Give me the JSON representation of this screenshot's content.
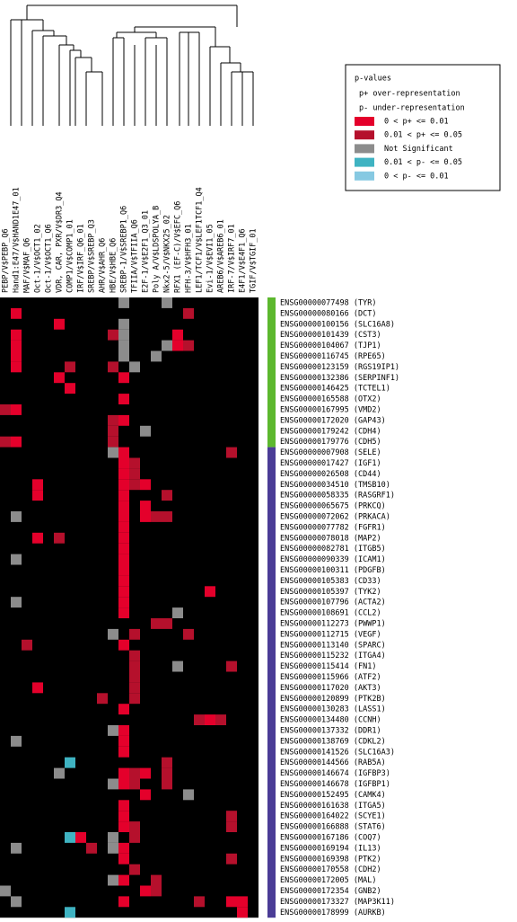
{
  "chart_data": {
    "type": "heatmap",
    "columns": [
      "PEBP/V$PEBP_Q6",
      "Hand1:E47/V$HAND1E47_01",
      "MAF/V$MAF_Q6",
      "Oct-1/V$OCT1_02",
      "Oct-1/V$OCT1_Q6",
      "VDR, CAR, PXR/V$DR3_Q4",
      "COMP1/V$COMP1_01",
      "IRF/V$IRF_Q6_01",
      "SREBP/V$SREBP_Q3",
      "AHR/V$AHR_Q6",
      "HBE/V$HBE_Q6",
      "SREBP-1/V$SREBP1_Q6",
      "TFIIA/V$TFIIA_Q6",
      "E2F-1/V$E2F1_Q3_01",
      "Poly A/V$LDSPOLYA_B",
      "Nkx2-5/V$NKX25_02",
      "RFX1 (EF-C)/V$EFC_Q6",
      "HFH-3/V$HFH3_01",
      "LEF1/TCF1/V$LEF1TCF1_Q4",
      "Evi-1/V$EVI1_05",
      "AREB6/V$AREB6_01",
      "IRF-7/V$IRF7_01",
      "E4F1/V$E4F1_Q6",
      "TGIF/V$TGIF_01"
    ],
    "rows": [
      "ENSG00000077498 (TYR)",
      "ENSG00000080166 (DCT)",
      "ENSG00000100156 (SLC16A8)",
      "ENSG00000101439 (CST3)",
      "ENSG00000104067 (TJP1)",
      "ENSG00000116745 (RPE65)",
      "ENSG00000123159 (RGS19IP1)",
      "ENSG00000132386 (SERPINF1)",
      "ENSG00000146425 (TCTEL1)",
      "ENSG00000165588 (OTX2)",
      "ENSG00000167995 (VMD2)",
      "ENSG00000172020 (GAP43)",
      "ENSG00000179242 (CDH4)",
      "ENSG00000179776 (CDH5)",
      "ENSG00000007908 (SELE)",
      "ENSG00000017427 (IGF1)",
      "ENSG00000026508 (CD44)",
      "ENSG00000034510 (TMSB10)",
      "ENSG00000058335 (RASGRF1)",
      "ENSG00000065675 (PRKCQ)",
      "ENSG00000072062 (PRKACA)",
      "ENSG00000077782 (FGFR1)",
      "ENSG00000078018 (MAP2)",
      "ENSG00000082781 (ITGB5)",
      "ENSG00000090339 (ICAM1)",
      "ENSG00000100311 (PDGFB)",
      "ENSG00000105383 (CD33)",
      "ENSG00000105397 (TYK2)",
      "ENSG00000107796 (ACTA2)",
      "ENSG00000108691 (CCL2)",
      "ENSG00000112273 (PWWP1)",
      "ENSG00000112715 (VEGF)",
      "ENSG00000113140 (SPARC)",
      "ENSG00000115232 (ITGA4)",
      "ENSG00000115414 (FN1)",
      "ENSG00000115966 (ATF2)",
      "ENSG00000117020 (AKT3)",
      "ENSG00000120899 (PTK2B)",
      "ENSG00000130283 (LASS1)",
      "ENSG00000134480 (CCNH)",
      "ENSG00000137332 (DDR1)",
      "ENSG00000138769 (CDKL2)",
      "ENSG00000141526 (SLC16A3)",
      "ENSG00000144566 (RAB5A)",
      "ENSG00000146674 (IGFBP3)",
      "ENSG00000146678 (IGFBP1)",
      "ENSG00000152495 (CAMK4)",
      "ENSG00000161638 (ITGA5)",
      "ENSG00000164022 (SCYE1)",
      "ENSG00000166888 (STAT6)",
      "ENSG00000167186 (COQ7)",
      "ENSG00000169194 (IL13)",
      "ENSG00000169398 (PTK2)",
      "ENSG00000170558 (CDH2)",
      "ENSG00000172005 (MAL)",
      "ENSG00000172354 (GNB2)",
      "ENSG00000173327 (MAP3K11)",
      "ENSG00000178999 (AURKB)"
    ],
    "row_groups": [
      {
        "color": "#5cb82e",
        "count": 14
      },
      {
        "color": "#4a3c96",
        "count": 44
      }
    ],
    "background": "#000000",
    "legend": {
      "title": "p-values",
      "notes": [
        "p+ over-representation",
        "p- under-representation"
      ]
    },
    "series": [
      {
        "name": "0 < p+ <= 0.01",
        "color": "#e4002b"
      },
      {
        "name": "0.01 < p+ <= 0.05",
        "color": "#b5102c"
      },
      {
        "name": "Not Significant",
        "color": "#8c8c8c"
      },
      {
        "name": "0.01 < p- <= 0.05",
        "color": "#3fb3c2"
      },
      {
        "name": "0 < p- <= 0.01",
        "color": "#86c9e2"
      }
    ],
    "cells": [
      [
        0,
        11,
        2
      ],
      [
        0,
        15,
        2
      ],
      [
        1,
        1,
        0
      ],
      [
        1,
        17,
        1
      ],
      [
        2,
        5,
        0
      ],
      [
        2,
        11,
        2
      ],
      [
        3,
        1,
        0
      ],
      [
        3,
        10,
        1
      ],
      [
        3,
        11,
        2
      ],
      [
        3,
        16,
        0
      ],
      [
        4,
        1,
        0
      ],
      [
        4,
        11,
        2
      ],
      [
        4,
        15,
        2
      ],
      [
        4,
        16,
        0
      ],
      [
        4,
        17,
        1
      ],
      [
        5,
        1,
        0
      ],
      [
        5,
        11,
        2
      ],
      [
        5,
        14,
        2
      ],
      [
        6,
        1,
        0
      ],
      [
        6,
        6,
        1
      ],
      [
        6,
        10,
        1
      ],
      [
        6,
        12,
        2
      ],
      [
        7,
        5,
        0
      ],
      [
        7,
        11,
        0
      ],
      [
        8,
        6,
        0
      ],
      [
        9,
        11,
        0
      ],
      [
        10,
        0,
        1
      ],
      [
        10,
        1,
        0
      ],
      [
        11,
        10,
        1
      ],
      [
        11,
        11,
        0
      ],
      [
        12,
        10,
        1
      ],
      [
        12,
        13,
        2
      ],
      [
        13,
        0,
        1
      ],
      [
        13,
        1,
        0
      ],
      [
        13,
        10,
        1
      ],
      [
        14,
        10,
        2
      ],
      [
        14,
        11,
        0
      ],
      [
        14,
        21,
        1
      ],
      [
        15,
        11,
        0
      ],
      [
        15,
        12,
        1
      ],
      [
        16,
        11,
        0
      ],
      [
        16,
        12,
        1
      ],
      [
        17,
        3,
        0
      ],
      [
        17,
        11,
        0
      ],
      [
        17,
        12,
        1
      ],
      [
        17,
        13,
        0
      ],
      [
        18,
        3,
        0
      ],
      [
        18,
        11,
        0
      ],
      [
        18,
        15,
        1
      ],
      [
        19,
        11,
        0
      ],
      [
        19,
        13,
        0
      ],
      [
        20,
        1,
        2
      ],
      [
        20,
        11,
        0
      ],
      [
        20,
        13,
        0
      ],
      [
        20,
        14,
        1
      ],
      [
        20,
        15,
        1
      ],
      [
        21,
        11,
        0
      ],
      [
        22,
        3,
        0
      ],
      [
        22,
        5,
        1
      ],
      [
        22,
        11,
        0
      ],
      [
        23,
        11,
        0
      ],
      [
        24,
        1,
        2
      ],
      [
        24,
        11,
        0
      ],
      [
        25,
        11,
        0
      ],
      [
        26,
        11,
        0
      ],
      [
        27,
        11,
        0
      ],
      [
        27,
        19,
        0
      ],
      [
        28,
        1,
        2
      ],
      [
        28,
        11,
        0
      ],
      [
        29,
        11,
        0
      ],
      [
        29,
        16,
        2
      ],
      [
        30,
        14,
        1
      ],
      [
        30,
        15,
        1
      ],
      [
        31,
        10,
        2
      ],
      [
        31,
        12,
        1
      ],
      [
        31,
        17,
        1
      ],
      [
        32,
        2,
        1
      ],
      [
        32,
        11,
        0
      ],
      [
        33,
        12,
        1
      ],
      [
        34,
        12,
        1
      ],
      [
        34,
        16,
        2
      ],
      [
        34,
        21,
        1
      ],
      [
        35,
        12,
        1
      ],
      [
        36,
        3,
        0
      ],
      [
        36,
        12,
        1
      ],
      [
        37,
        9,
        1
      ],
      [
        37,
        12,
        1
      ],
      [
        38,
        11,
        0
      ],
      [
        39,
        18,
        1
      ],
      [
        39,
        19,
        0
      ],
      [
        39,
        20,
        1
      ],
      [
        40,
        10,
        2
      ],
      [
        40,
        11,
        0
      ],
      [
        41,
        1,
        2
      ],
      [
        41,
        11,
        0
      ],
      [
        42,
        11,
        0
      ],
      [
        43,
        6,
        3
      ],
      [
        43,
        15,
        1
      ],
      [
        44,
        5,
        2
      ],
      [
        44,
        11,
        0
      ],
      [
        44,
        12,
        1
      ],
      [
        44,
        13,
        0
      ],
      [
        44,
        15,
        1
      ],
      [
        45,
        10,
        2
      ],
      [
        45,
        11,
        0
      ],
      [
        45,
        12,
        1
      ],
      [
        45,
        15,
        1
      ],
      [
        46,
        13,
        0
      ],
      [
        46,
        17,
        2
      ],
      [
        47,
        11,
        0
      ],
      [
        48,
        11,
        0
      ],
      [
        48,
        21,
        1
      ],
      [
        49,
        11,
        0
      ],
      [
        49,
        12,
        1
      ],
      [
        49,
        21,
        1
      ],
      [
        50,
        6,
        3
      ],
      [
        50,
        7,
        0
      ],
      [
        50,
        10,
        2
      ],
      [
        50,
        12,
        1
      ],
      [
        51,
        1,
        2
      ],
      [
        51,
        8,
        1
      ],
      [
        51,
        10,
        2
      ],
      [
        51,
        11,
        0
      ],
      [
        52,
        11,
        0
      ],
      [
        52,
        21,
        1
      ],
      [
        53,
        12,
        1
      ],
      [
        54,
        10,
        2
      ],
      [
        54,
        11,
        0
      ],
      [
        54,
        14,
        1
      ],
      [
        55,
        0,
        2
      ],
      [
        55,
        13,
        0
      ],
      [
        55,
        14,
        1
      ],
      [
        56,
        1,
        2
      ],
      [
        56,
        11,
        0
      ],
      [
        56,
        18,
        1
      ],
      [
        56,
        21,
        0
      ],
      [
        56,
        22,
        0
      ],
      [
        57,
        6,
        3
      ],
      [
        57,
        22,
        0
      ]
    ]
  }
}
